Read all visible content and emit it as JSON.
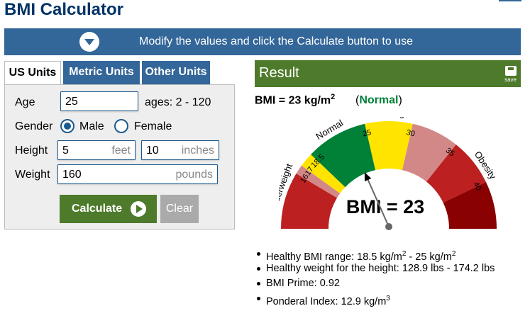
{
  "page": {
    "title": "BMI Calculator"
  },
  "banner": {
    "text": "Modify the values and click the Calculate button to use",
    "icon": "chevron-down-circle-icon"
  },
  "tabs": [
    {
      "label": "US Units",
      "active": true
    },
    {
      "label": "Metric Units",
      "active": false
    },
    {
      "label": "Other Units",
      "active": false
    }
  ],
  "form": {
    "age": {
      "label": "Age",
      "value": "25",
      "hint": "ages: 2 - 120"
    },
    "gender": {
      "label": "Gender",
      "options": [
        "Male",
        "Female"
      ],
      "selected": "Male"
    },
    "height": {
      "label": "Height",
      "feet": "5",
      "feet_unit": "feet",
      "inches": "10",
      "inches_unit": "inches"
    },
    "weight": {
      "label": "Weight",
      "value": "160",
      "unit": "pounds"
    },
    "calculate_label": "Calculate",
    "clear_label": "Clear"
  },
  "result": {
    "title": "Result",
    "save_label": "save",
    "bmi_prefix": "BMI = 23 kg/m",
    "bmi_exp": "2",
    "category_open": "(",
    "category": "Normal",
    "category_close": ")",
    "gauge": {
      "value": 23,
      "center_label": "BMI = 23",
      "bands": [
        {
          "label": "Underweight",
          "color": "#bc2020"
        },
        {
          "label": "Normal",
          "color": "#008137"
        },
        {
          "label": "Overweight",
          "color": "#ffe400"
        },
        {
          "label": "Obesity",
          "color": "#d38888"
        }
      ],
      "ticks": [
        "16",
        "17",
        "18.5",
        "25",
        "30",
        "35",
        "40"
      ],
      "colors": {
        "severe": "#bc2020",
        "moderate": "#d38888",
        "mild": "#ffe400",
        "normal": "#008137",
        "extreme": "#8a0101"
      }
    },
    "stats": [
      {
        "text": "Healthy BMI range: 18.5 kg/m",
        "exp": "2",
        "tail": " - 25 kg/m",
        "exp2": "2"
      },
      {
        "text": "Healthy weight for the height: 128.9 lbs - 174.2 lbs"
      },
      {
        "text": "BMI Prime: 0.92"
      },
      {
        "text": "Ponderal Index: 12.9 kg/m",
        "exp": "3"
      }
    ]
  }
}
